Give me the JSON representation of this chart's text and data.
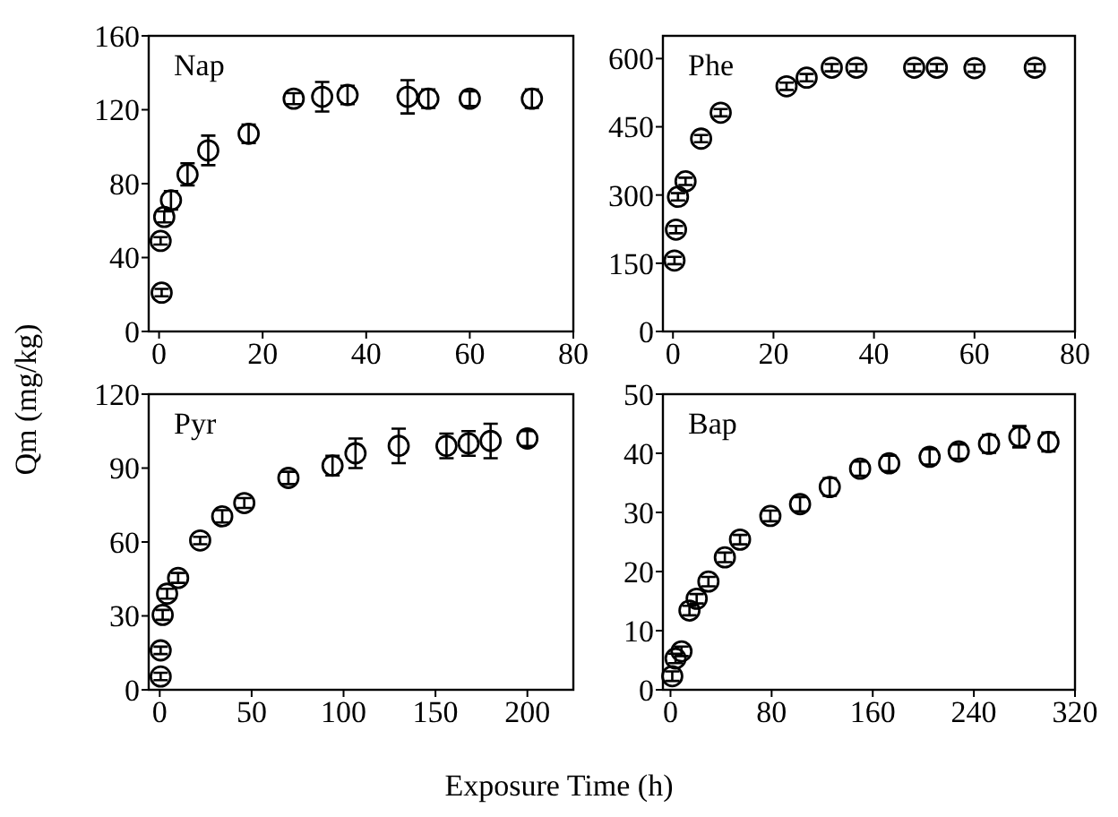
{
  "chart_data": [
    {
      "type": "scatter",
      "title": "Nap",
      "ylabel": "Qm (mg/kg)",
      "marker": "circle",
      "grid": false,
      "xlim": [
        -2,
        80
      ],
      "xticks": [
        0,
        20,
        40,
        60,
        80
      ],
      "ylim": [
        0,
        160
      ],
      "yticks": [
        0,
        40,
        80,
        120,
        160
      ],
      "series": [
        {
          "color": "#000000",
          "x": [
            0.5,
            0.3,
            1,
            2.3,
            5.5,
            9.5,
            17.3,
            26,
            31.5,
            36.4,
            48,
            52,
            60,
            72
          ],
          "values": [
            21,
            49,
            62,
            71,
            85,
            98,
            107,
            126,
            127,
            128,
            127,
            126,
            126,
            126
          ],
          "errors": [
            2,
            2,
            3,
            5,
            6,
            8,
            5,
            3,
            8,
            5,
            9,
            5,
            4,
            5
          ]
        }
      ]
    },
    {
      "type": "scatter",
      "title": "Phe",
      "marker": "circle",
      "grid": false,
      "xlim": [
        -2,
        80
      ],
      "xticks": [
        0,
        20,
        40,
        60,
        80
      ],
      "ylim": [
        0,
        650
      ],
      "yticks": [
        0,
        150,
        300,
        450,
        600
      ],
      "series": [
        {
          "color": "#000000",
          "x": [
            0.3,
            0.6,
            1,
            2.5,
            5.6,
            9.5,
            22.6,
            26.6,
            31.6,
            36.5,
            48,
            52.5,
            60,
            72
          ],
          "values": [
            156,
            224,
            296,
            330,
            424,
            481,
            539,
            558,
            580,
            580,
            580,
            580,
            579,
            580
          ],
          "errors": [
            8,
            8,
            8,
            8,
            8,
            8,
            8,
            8,
            8,
            8,
            8,
            8,
            8,
            8
          ]
        }
      ]
    },
    {
      "type": "scatter",
      "title": "Pyr",
      "xlabel": "Exposure Time (h)",
      "marker": "circle",
      "grid": false,
      "xlim": [
        -6,
        225
      ],
      "xticks": [
        0,
        50,
        100,
        150,
        200
      ],
      "ylim": [
        0,
        120
      ],
      "yticks": [
        0,
        30,
        60,
        90,
        120
      ],
      "series": [
        {
          "color": "#000000",
          "x": [
            0.5,
            0.5,
            1.6,
            4,
            10,
            22,
            34,
            46,
            70,
            94,
            106.5,
            130,
            156,
            168,
            180,
            200
          ],
          "values": [
            5.4,
            16,
            30.4,
            39,
            45.4,
            60.6,
            70.4,
            75.8,
            86,
            91,
            96,
            99,
            99,
            100,
            101,
            102
          ],
          "errors": [
            1.5,
            1.5,
            2,
            2,
            2,
            1.5,
            2.5,
            2,
            2.5,
            4,
            6,
            7,
            5,
            5,
            7,
            3
          ]
        }
      ]
    },
    {
      "type": "scatter",
      "title": "Bap",
      "marker": "circle",
      "grid": false,
      "xlim": [
        -6,
        320
      ],
      "xticks": [
        0,
        80,
        160,
        240,
        320
      ],
      "ylim": [
        0,
        50
      ],
      "yticks": [
        0,
        10,
        20,
        30,
        40,
        50
      ],
      "series": [
        {
          "color": "#000000",
          "x": [
            1.4,
            4,
            8.7,
            15,
            20.7,
            30,
            43,
            55,
            79,
            102.5,
            126,
            150,
            173,
            205,
            228,
            252,
            276,
            299
          ],
          "values": [
            2.3,
            5.3,
            6.5,
            13.4,
            15.4,
            18.3,
            22.4,
            25.4,
            29.4,
            31.4,
            34.3,
            37.4,
            38.3,
            39.4,
            40.3,
            41.6,
            42.8,
            41.9
          ],
          "errors": [
            0.8,
            0.8,
            0.8,
            0.8,
            0.8,
            0.8,
            0.8,
            0.8,
            0.9,
            1.2,
            1.5,
            1.2,
            1.3,
            1.3,
            1.2,
            1.5,
            1.8,
            1.6
          ]
        }
      ]
    }
  ]
}
